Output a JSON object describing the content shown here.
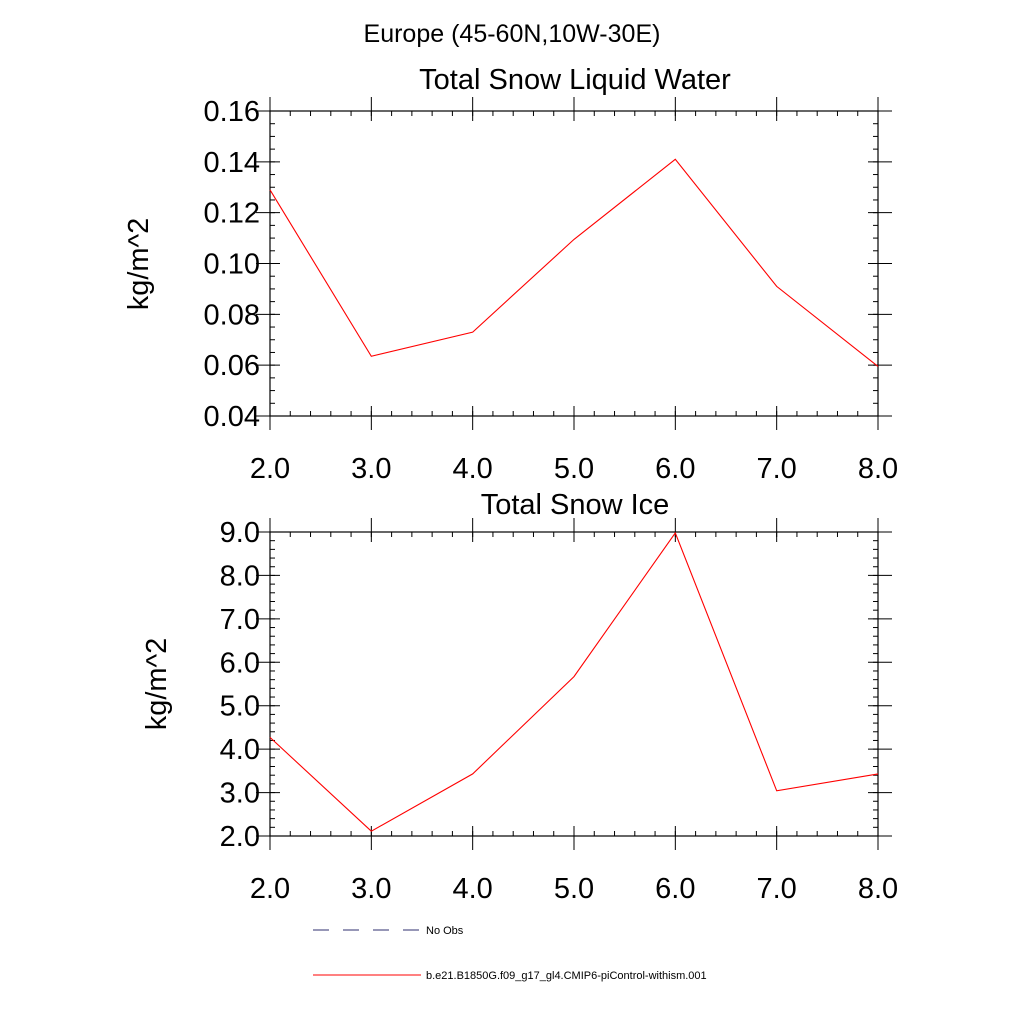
{
  "figure": {
    "suptitle": "Europe (45-60N,10W-30E)"
  },
  "chart_data": [
    {
      "type": "line",
      "title": "Total Snow Liquid Water",
      "xlabel": "",
      "ylabel": "kg/m^2",
      "xlim": [
        2.0,
        8.0
      ],
      "ylim": [
        0.04,
        0.16
      ],
      "xticks": [
        "2.0",
        "3.0",
        "4.0",
        "5.0",
        "6.0",
        "7.0",
        "8.0"
      ],
      "yticks": [
        "0.04",
        "0.06",
        "0.08",
        "0.10",
        "0.12",
        "0.14",
        "0.16"
      ],
      "ytick_values": [
        0.04,
        0.06,
        0.08,
        0.1,
        0.12,
        0.14,
        0.16
      ],
      "xtick_values": [
        2,
        3,
        4,
        5,
        6,
        7,
        8
      ],
      "yminor_step": 0.005,
      "xminor_step": 0.2,
      "series": [
        {
          "name": "b.e21.B1850G.f09_g17_gl4.CMIP6-piControl-withism.001",
          "color": "#ff0000",
          "x": [
            2,
            3,
            4,
            5,
            6,
            7,
            8
          ],
          "values": [
            0.129,
            0.0635,
            0.073,
            0.1095,
            0.141,
            0.091,
            0.0595
          ]
        }
      ]
    },
    {
      "type": "line",
      "title": "Total Snow Ice",
      "xlabel": "",
      "ylabel": "kg/m^2",
      "xlim": [
        2.0,
        8.0
      ],
      "ylim": [
        2.0,
        9.0
      ],
      "xticks": [
        "2.0",
        "3.0",
        "4.0",
        "5.0",
        "6.0",
        "7.0",
        "8.0"
      ],
      "yticks": [
        "2.0",
        "3.0",
        "4.0",
        "5.0",
        "6.0",
        "7.0",
        "8.0",
        "9.0"
      ],
      "ytick_values": [
        2,
        3,
        4,
        5,
        6,
        7,
        8,
        9
      ],
      "xtick_values": [
        2,
        3,
        4,
        5,
        6,
        7,
        8
      ],
      "yminor_step": 0.2,
      "xminor_step": 0.2,
      "series": [
        {
          "name": "b.e21.B1850G.f09_g17_gl4.CMIP6-piControl-withism.001",
          "color": "#ff0000",
          "x": [
            2,
            3,
            4,
            5,
            6,
            7,
            8
          ],
          "values": [
            4.27,
            2.11,
            3.43,
            5.67,
            8.98,
            3.04,
            3.43
          ]
        }
      ]
    }
  ],
  "legend": [
    {
      "label": "No Obs",
      "color": "#2f2f6f",
      "style": "dashed"
    },
    {
      "label": "b.e21.B1850G.f09_g17_gl4.CMIP6-piControl-withism.001",
      "color": "#ff0000",
      "style": "solid"
    }
  ]
}
